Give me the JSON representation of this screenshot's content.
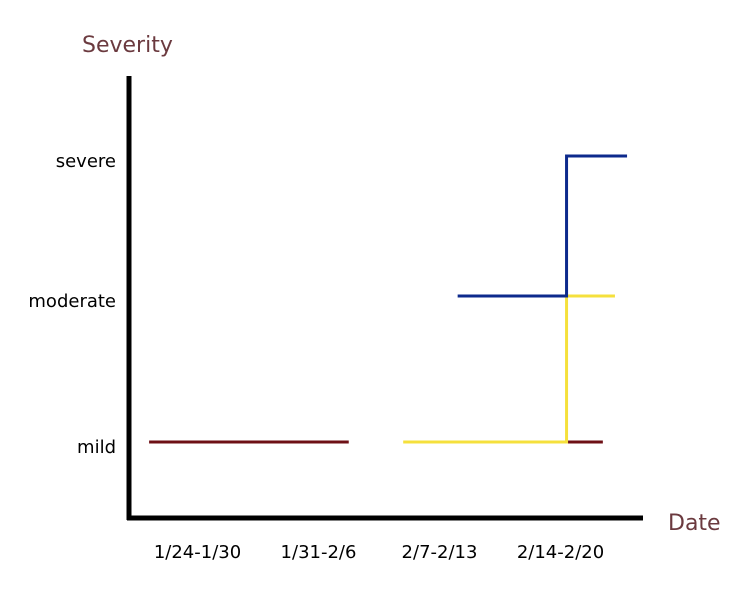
{
  "chart_data": {
    "type": "line",
    "step": true,
    "title": "",
    "xlabel": "Date",
    "ylabel": "Severity",
    "categories": [
      "1/24-1/30",
      "1/31-2/6",
      "2/7-2/13",
      "2/14-2/20"
    ],
    "levels": [
      "mild",
      "moderate",
      "severe"
    ],
    "xlim": [
      0,
      4
    ],
    "axis_label_color": "#6b3a3f",
    "series": [
      {
        "color": "#6e1016",
        "segments": [
          {
            "x": [
              0.1,
              1.75
            ],
            "y": [
              "mild",
              "mild"
            ]
          },
          {
            "x": [
              3.35,
              3.85
            ],
            "y": [
              "mild",
              "mild"
            ]
          }
        ]
      },
      {
        "color": "#f5e03c",
        "segments": [
          {
            "x": [
              2.2,
              3.55,
              3.55,
              3.95
            ],
            "y": [
              "mild",
              "mild",
              "moderate",
              "moderate"
            ]
          }
        ]
      },
      {
        "color": "#0d2a8c",
        "segments": [
          {
            "x": [
              2.65,
              3.55,
              3.55,
              4.05
            ],
            "y": [
              "moderate",
              "moderate",
              "severe",
              "severe"
            ]
          }
        ]
      }
    ]
  }
}
